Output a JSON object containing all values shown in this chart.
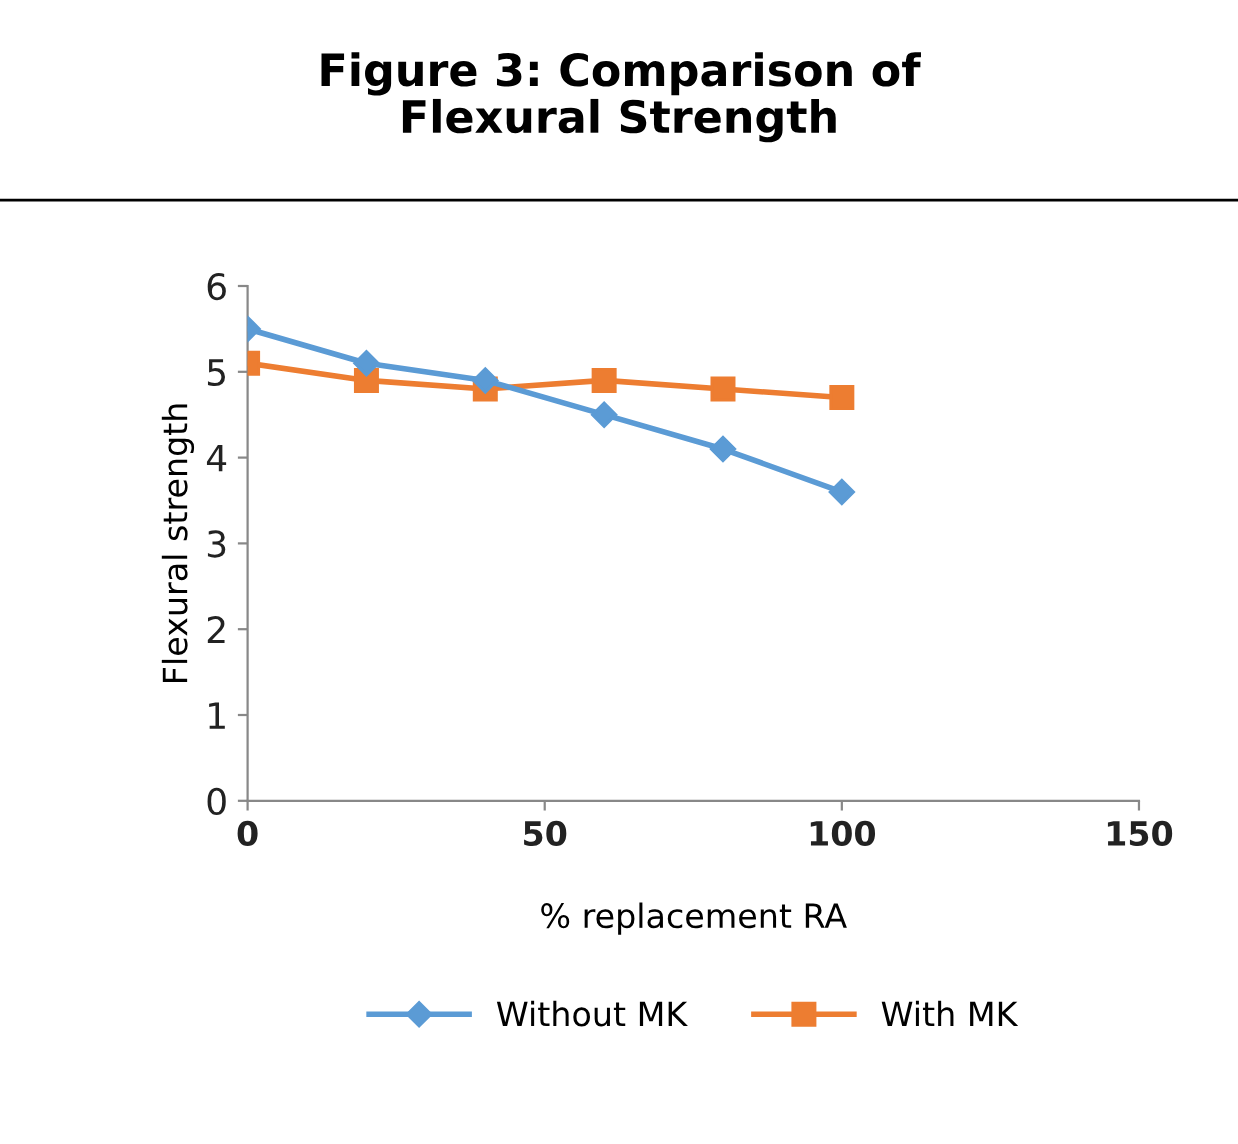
{
  "chart_data": {
    "type": "line",
    "title": "Figure 3: Comparison of\nFlexural Strength",
    "xlabel": "% replacement RA",
    "ylabel": "Flexural strength",
    "x": [
      0,
      20,
      40,
      60,
      80,
      100
    ],
    "series": [
      {
        "name": "Without MK",
        "color": "#5b9bd5",
        "marker": "diamond",
        "values": [
          5.5,
          5.1,
          4.9,
          4.5,
          4.1,
          3.6
        ]
      },
      {
        "name": "With MK",
        "color": "#ed7d31",
        "marker": "square",
        "values": [
          5.1,
          4.9,
          4.8,
          4.9,
          4.8,
          4.7
        ]
      }
    ],
    "xlim": [
      0,
      150
    ],
    "xticks": [
      0,
      50,
      100,
      150
    ],
    "ylim": [
      0,
      6
    ],
    "yticks": [
      0,
      1,
      2,
      3,
      4,
      5,
      6
    ],
    "grid": false,
    "legend": "bottom",
    "line_style": "solid"
  }
}
